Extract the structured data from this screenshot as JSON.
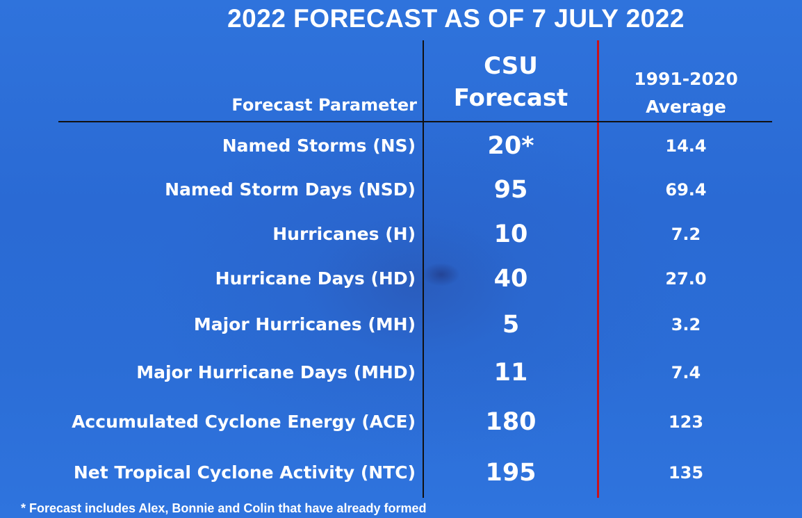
{
  "title": "2022 FORECAST AS OF 7 JULY 2022",
  "headers": {
    "parameter": "Forecast Parameter",
    "csu_line1": "CSU",
    "csu_line2": "Forecast",
    "avg_line1": "1991-2020",
    "avg_line2": "Average"
  },
  "rows": [
    {
      "parameter": "Named Storms (NS)",
      "csu": "20*",
      "avg": "14.4"
    },
    {
      "parameter": "Named Storm Days (NSD)",
      "csu": "95",
      "avg": "69.4"
    },
    {
      "parameter": "Hurricanes (H)",
      "csu": "10",
      "avg": "7.2"
    },
    {
      "parameter": "Hurricane Days (HD)",
      "csu": "40",
      "avg": "27.0"
    },
    {
      "parameter": "Major Hurricanes (MH)",
      "csu": "5",
      "avg": "3.2"
    },
    {
      "parameter": "Major Hurricane Days (MHD)",
      "csu": "11",
      "avg": "7.4"
    },
    {
      "parameter": "Accumulated Cyclone Energy (ACE)",
      "csu": "180",
      "avg": "123"
    },
    {
      "parameter": "Net Tropical Cyclone Activity (NTC)",
      "csu": "195",
      "avg": "135"
    }
  ],
  "footnote": "* Forecast includes Alex, Bonnie and Colin that have already formed",
  "colors": {
    "background": "#2b6dd6",
    "divider_red": "#c9121b",
    "divider_black": "#111111",
    "text": "#ffffff"
  }
}
